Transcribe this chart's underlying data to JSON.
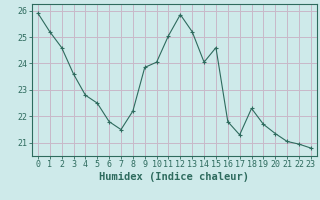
{
  "x": [
    0,
    1,
    2,
    3,
    4,
    5,
    6,
    7,
    8,
    9,
    10,
    11,
    12,
    13,
    14,
    15,
    16,
    17,
    18,
    19,
    20,
    21,
    22,
    23
  ],
  "y": [
    25.9,
    25.2,
    24.6,
    23.6,
    22.8,
    22.5,
    21.8,
    21.5,
    22.2,
    23.85,
    24.05,
    25.05,
    25.85,
    25.2,
    24.05,
    24.6,
    21.8,
    21.3,
    22.3,
    21.7,
    21.35,
    21.05,
    20.95,
    20.8
  ],
  "line_color": "#2e6b5e",
  "marker": "P",
  "marker_size": 2.5,
  "bg_color": "#ceeaea",
  "grid_color_h": "#c8b8c8",
  "grid_color_v": "#c8b8c8",
  "xlabel": "Humidex (Indice chaleur)",
  "ylabel": "",
  "ylim": [
    20.5,
    26.25
  ],
  "yticks": [
    21,
    22,
    23,
    24,
    25,
    26
  ],
  "xticks": [
    0,
    1,
    2,
    3,
    4,
    5,
    6,
    7,
    8,
    9,
    10,
    11,
    12,
    13,
    14,
    15,
    16,
    17,
    18,
    19,
    20,
    21,
    22,
    23
  ],
  "axis_color": "#2e6b5e",
  "tick_color": "#2e6b5e",
  "label_fontsize": 6,
  "xlabel_fontsize": 7.5
}
